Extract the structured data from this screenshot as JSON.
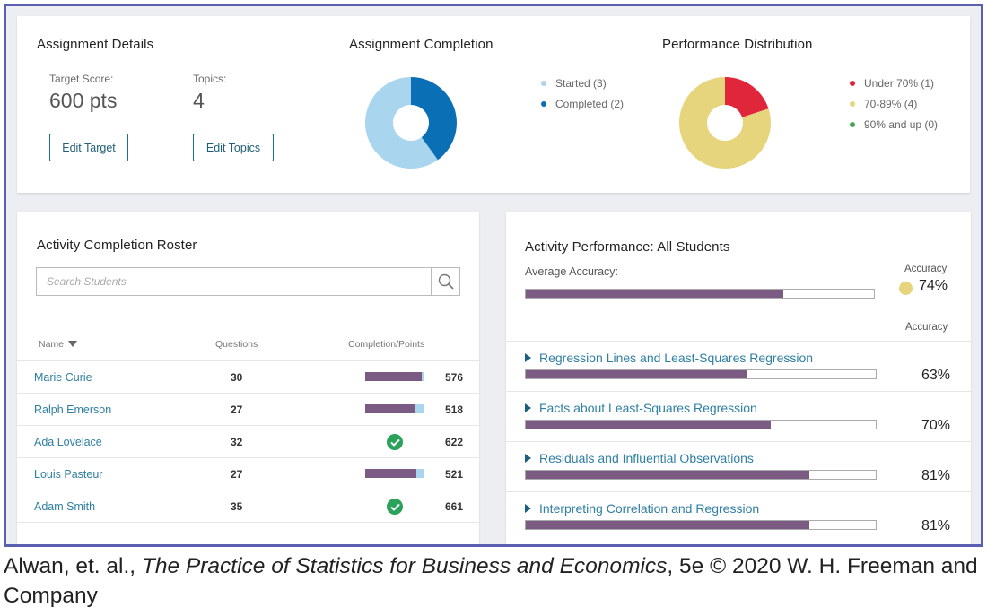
{
  "assignment_details": {
    "title": "Assignment Details",
    "target_label": "Target Score:",
    "target_value": "600 pts",
    "topics_label": "Topics:",
    "topics_value": "4",
    "edit_target_label": "Edit Target",
    "edit_topics_label": "Edit Topics"
  },
  "assignment_completion": {
    "title": "Assignment Completion",
    "legend": [
      {
        "label": "Started (3)",
        "color": "#a9d5ee"
      },
      {
        "label": "Completed (2)",
        "color": "#0b6fb6"
      }
    ],
    "chart_data": {
      "type": "pie",
      "categories": [
        "Started",
        "Completed"
      ],
      "values": [
        3,
        2
      ],
      "colors": [
        "#a9d5ee",
        "#0b6fb6"
      ]
    }
  },
  "performance_distribution": {
    "title": "Performance Distribution",
    "legend": [
      {
        "label": "Under 70% (1)",
        "color": "#e0263a"
      },
      {
        "label": "70-89% (4)",
        "color": "#e7d57e"
      },
      {
        "label": "90% and up (0)",
        "color": "#45a853"
      }
    ],
    "chart_data": {
      "type": "pie",
      "categories": [
        "Under 70%",
        "70-89%",
        "90% and up"
      ],
      "values": [
        1,
        4,
        0
      ],
      "colors": [
        "#e0263a",
        "#e7d57e",
        "#45a853"
      ]
    }
  },
  "roster": {
    "title": "Activity Completion Roster",
    "search_placeholder": "Search Students",
    "col_name": "Name",
    "col_questions": "Questions",
    "col_completion": "Completion/Points",
    "rows": [
      {
        "name": "Marie Curie",
        "questions": "30",
        "points": "576",
        "completed": false,
        "progress": 0.95
      },
      {
        "name": "Ralph Emerson",
        "questions": "27",
        "points": "518",
        "completed": false,
        "progress": 0.85
      },
      {
        "name": "Ada Lovelace",
        "questions": "32",
        "points": "622",
        "completed": true,
        "progress": 1
      },
      {
        "name": "Louis Pasteur",
        "questions": "27",
        "points": "521",
        "completed": false,
        "progress": 0.86
      },
      {
        "name": "Adam Smith",
        "questions": "35",
        "points": "661",
        "completed": true,
        "progress": 1
      }
    ]
  },
  "performance": {
    "title": "Activity Performance: All Students",
    "avg_label": "Average Accuracy:",
    "accuracy_header": "Accuracy",
    "accuracy_dot_color": "#e7d57e",
    "avg_value": "74%",
    "avg_fraction": 0.74,
    "col_accuracy": "Accuracy",
    "topics": [
      {
        "label": "Regression Lines and Least-Squares Regression",
        "value": "63%",
        "fraction": 0.63
      },
      {
        "label": "Facts about Least-Squares Regression",
        "value": "70%",
        "fraction": 0.7
      },
      {
        "label": "Residuals and Influential Observations",
        "value": "81%",
        "fraction": 0.81
      },
      {
        "label": "Interpreting Correlation and Regression",
        "value": "81%",
        "fraction": 0.81
      }
    ]
  },
  "caption": {
    "authors": "Alwan, et. al., ",
    "book": "The Practice of Statistics for Business and Economics",
    "rest": ", 5e © 2020 W. H. Freeman and Company"
  }
}
